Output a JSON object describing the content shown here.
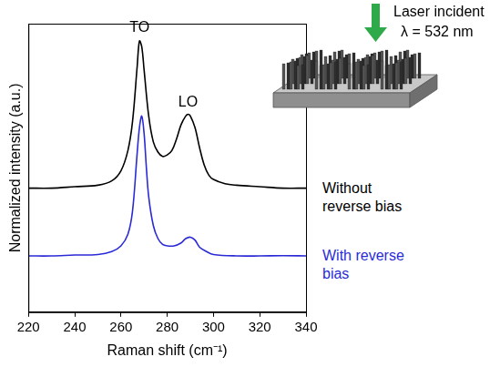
{
  "chart_data": {
    "type": "line",
    "x_label": "Raman shift (cm⁻¹)",
    "y_label": "Normalized intensity (a.u.)",
    "xlim": [
      220,
      340
    ],
    "xticks": [
      220,
      240,
      260,
      280,
      300,
      320,
      340
    ],
    "ylim": [
      0,
      1
    ],
    "tick_labels": "x",
    "grid": false,
    "series": [
      {
        "name": "Without reverse bias",
        "color": "#000000",
        "x": [
          220,
          230,
          240,
          250,
          256,
          260,
          263,
          265,
          267,
          268,
          269,
          270,
          272,
          274,
          276,
          278,
          280,
          282,
          284,
          286,
          288,
          289,
          290,
          292,
          294,
          296,
          298,
          300,
          305,
          310,
          320,
          330,
          340
        ],
        "values": [
          0.43,
          0.43,
          0.435,
          0.44,
          0.455,
          0.49,
          0.56,
          0.66,
          0.85,
          0.94,
          0.92,
          0.84,
          0.68,
          0.59,
          0.555,
          0.54,
          0.545,
          0.56,
          0.6,
          0.65,
          0.68,
          0.686,
          0.68,
          0.64,
          0.57,
          0.51,
          0.475,
          0.46,
          0.445,
          0.44,
          0.435,
          0.43,
          0.43
        ]
      },
      {
        "name": "With reverse bias",
        "color": "#2b2bd6",
        "x": [
          220,
          230,
          240,
          250,
          256,
          260,
          263,
          265,
          267,
          268,
          269,
          270,
          271,
          272,
          274,
          276,
          278,
          280,
          283,
          286,
          288,
          290,
          292,
          294,
          297,
          300,
          310,
          320,
          330,
          340
        ],
        "values": [
          0.195,
          0.195,
          0.198,
          0.2,
          0.21,
          0.23,
          0.27,
          0.35,
          0.55,
          0.64,
          0.68,
          0.62,
          0.5,
          0.4,
          0.3,
          0.255,
          0.235,
          0.23,
          0.23,
          0.24,
          0.255,
          0.26,
          0.25,
          0.225,
          0.21,
          0.2,
          0.195,
          0.195,
          0.196,
          0.195
        ]
      }
    ],
    "annotations": [
      {
        "text": "TO",
        "x": 268,
        "y": 0.96
      },
      {
        "text": "LO",
        "x": 289,
        "y": 0.7
      }
    ],
    "diagram": {
      "arrow_label": "Laser incident",
      "wavelength": "λ = 532 nm"
    }
  }
}
